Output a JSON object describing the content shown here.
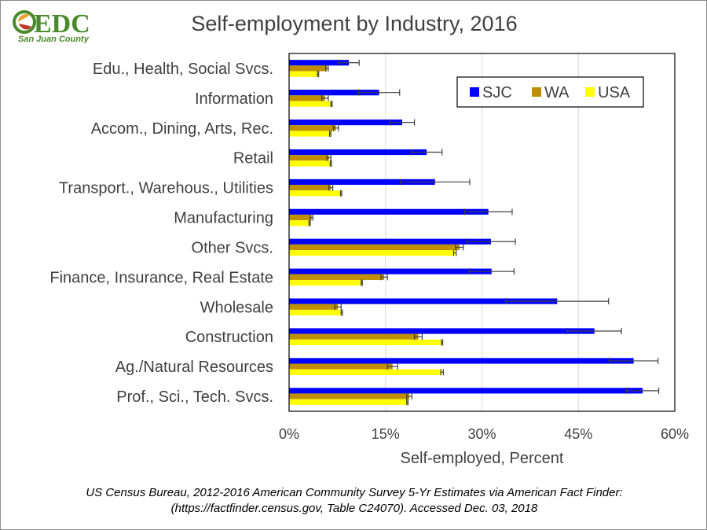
{
  "logo": {
    "brand_text": "EDC",
    "sub_text": "San Juan County",
    "colors": {
      "green": "#4a8a2a",
      "orange": "#e8a33a",
      "red": "#c0392b"
    }
  },
  "chart_data": {
    "type": "bar",
    "orientation": "horizontal",
    "title": "Self-employment by Industry, 2016",
    "xlabel": "Self-employed, Percent",
    "ylabel": "",
    "xlim": [
      0,
      60
    ],
    "xticks": [
      0,
      15,
      30,
      45,
      60
    ],
    "xtick_labels": [
      "0%",
      "15%",
      "30%",
      "45%",
      "60%"
    ],
    "grid": "vertical",
    "legend_position": "top-right",
    "categories": [
      "Edu., Health, Social Svcs.",
      "Information",
      "Accom., Dining, Arts, Rec.",
      "Retail",
      "Transport., Warehous., Utilities",
      "Manufacturing",
      "Other Svcs.",
      "Finance, Insurance, Real Estate",
      "Wholesale",
      "Construction",
      "Ag./Natural Resources",
      "Prof., Sci., Tech. Svcs."
    ],
    "series": [
      {
        "name": "SJC",
        "color": "#0000ff",
        "values": [
          9.3,
          14.0,
          17.6,
          21.4,
          22.7,
          31.0,
          31.4,
          31.5,
          41.7,
          47.5,
          53.6,
          55.0
        ],
        "errors": [
          1.6,
          3.2,
          1.9,
          2.4,
          5.4,
          3.7,
          3.8,
          3.5,
          8.0,
          4.2,
          3.8,
          2.5
        ]
      },
      {
        "name": "WA",
        "color": "#bf8f00",
        "values": [
          5.9,
          5.6,
          7.3,
          6.2,
          6.5,
          3.5,
          26.5,
          14.8,
          7.6,
          20.1,
          16.1,
          18.7
        ],
        "errors": [
          0.2,
          0.5,
          0.4,
          0.3,
          0.3,
          0.2,
          0.6,
          0.5,
          0.5,
          0.6,
          0.8,
          0.4
        ]
      },
      {
        "name": "USA",
        "color": "#ffff00",
        "values": [
          4.5,
          6.6,
          6.4,
          6.5,
          8.1,
          3.2,
          25.8,
          11.3,
          8.2,
          23.8,
          23.8,
          18.4
        ],
        "errors": [
          0.1,
          0.1,
          0.1,
          0.1,
          0.1,
          0.1,
          0.2,
          0.1,
          0.1,
          0.1,
          0.2,
          0.1
        ]
      }
    ]
  },
  "source": {
    "line1": "US Census Bureau, 2012-2016 American Community Survey 5-Yr Estimates via American Fact Finder:",
    "line2": "(https://factfinder.census.gov, Table C24070). Accessed Dec. 03, 2018"
  }
}
